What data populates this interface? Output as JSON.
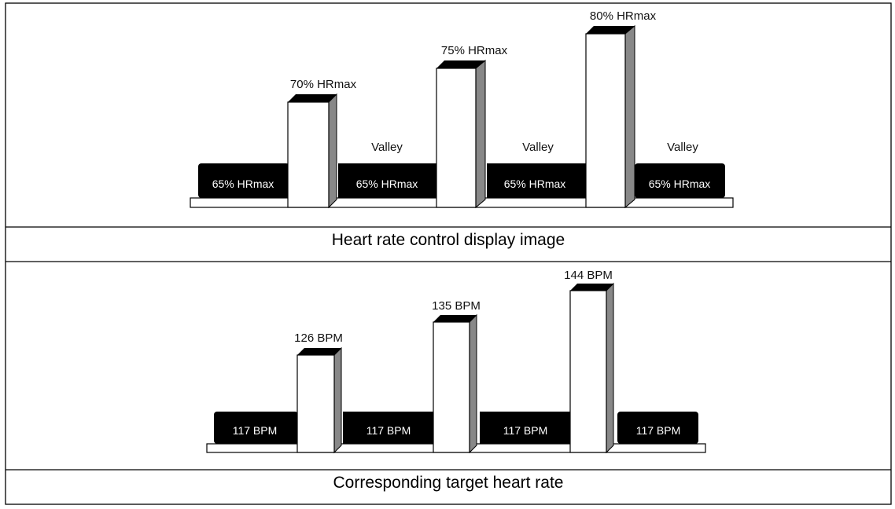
{
  "panel_top": {
    "peaks": [
      "70% HRmax",
      "75% HRmax",
      "80% HRmax"
    ],
    "valley_labels": [
      "Valley",
      "Valley",
      "Valley"
    ],
    "baseline": [
      "65% HRmax",
      "65% HRmax",
      "65% HRmax",
      "65% HRmax"
    ],
    "caption": "Heart rate control display image"
  },
  "panel_bottom": {
    "peaks": [
      "126 BPM",
      "135 BPM",
      "144 BPM"
    ],
    "baseline": [
      "117 BPM",
      "117 BPM",
      "117 BPM",
      "117 BPM"
    ],
    "caption": "Corresponding target heart rate"
  }
}
